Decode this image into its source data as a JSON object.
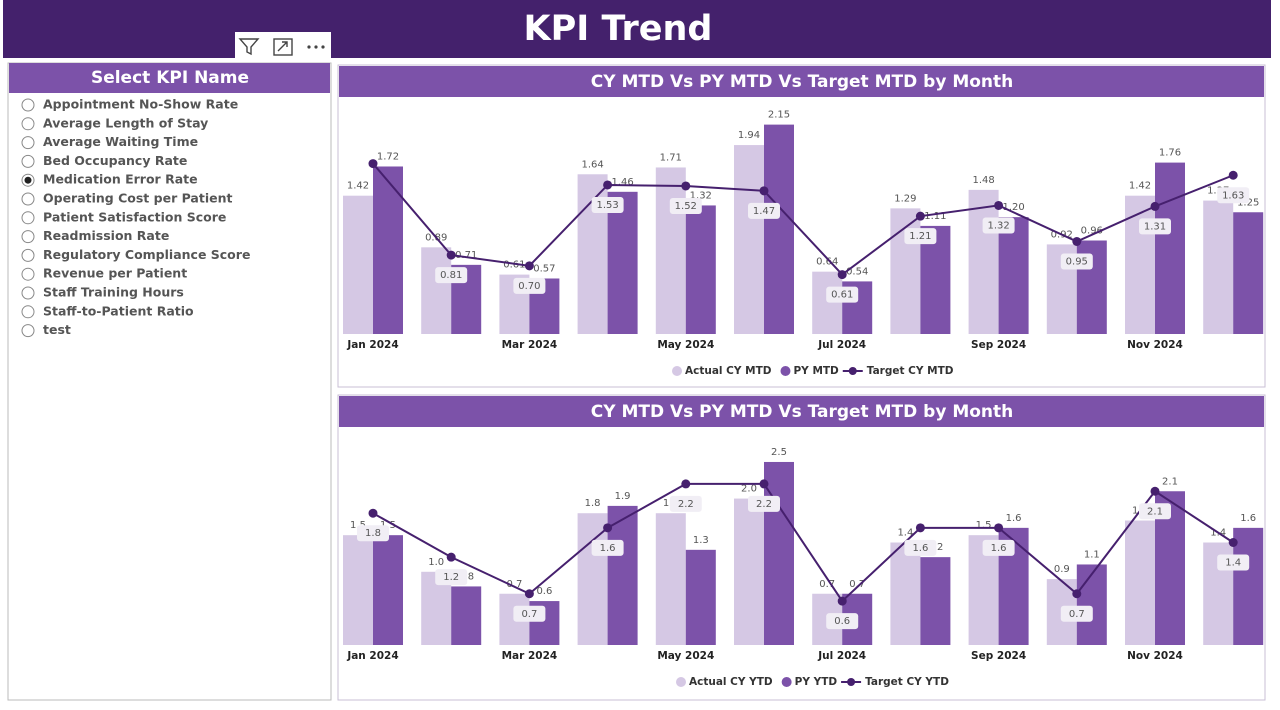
{
  "header": {
    "title": "KPI Trend"
  },
  "slicer": {
    "title": "Select KPI Name",
    "selected": 4,
    "items": [
      "Appointment No-Show Rate",
      "Average Length of Stay",
      "Average Waiting Time",
      "Bed Occupancy Rate",
      "Medication Error Rate",
      "Operating Cost per Patient",
      "Patient Satisfaction Score",
      "Readmission Rate",
      "Regulatory Compliance Score",
      "Revenue per Patient",
      "Staff Training Hours",
      "Staff-to-Patient Ratio",
      "test"
    ]
  },
  "chart_data": [
    {
      "type": "combo",
      "title": "CY MTD Vs PY MTD Vs Target MTD by Month",
      "legend": "bottom",
      "categories": [
        "Jan 2024",
        null,
        "Mar 2024",
        null,
        "May 2024",
        null,
        "Jul 2024",
        null,
        "Sep 2024",
        null,
        "Nov 2024",
        null
      ],
      "ylim": [
        0,
        2.3
      ],
      "series": [
        {
          "name": "Actual CY MTD",
          "type": "bar",
          "color": "#d5c8e4",
          "values": [
            1.42,
            0.89,
            0.61,
            1.64,
            1.71,
            1.94,
            0.64,
            1.29,
            1.48,
            0.92,
            1.42,
            1.37
          ],
          "value_labels": [
            "1.42",
            "0.89",
            "0.61",
            "1.64",
            "1.71",
            "1.94",
            "0.64",
            "1.29",
            "1.48",
            "0.92",
            "1.42",
            "1.37"
          ]
        },
        {
          "name": "PY MTD",
          "type": "bar",
          "color": "#7c52a9",
          "values": [
            1.72,
            0.71,
            0.57,
            1.46,
            1.32,
            2.15,
            0.54,
            1.11,
            1.2,
            0.96,
            1.76,
            1.25
          ],
          "value_labels": [
            "1.72",
            "0.71",
            "0.57",
            "1.46",
            "1.32",
            "2.15",
            "0.54",
            "1.11",
            "1.20",
            "0.96",
            "1.76",
            "1.25"
          ]
        },
        {
          "name": "Target CY MTD",
          "type": "line",
          "color": "#46206e",
          "values": [
            1.75,
            0.81,
            0.7,
            1.53,
            1.52,
            1.47,
            0.61,
            1.21,
            1.32,
            0.95,
            1.31,
            1.63
          ],
          "value_labels": [
            null,
            "0.81",
            "0.70",
            "1.53",
            "1.52",
            "1.47",
            "0.61",
            "1.21",
            "1.32",
            "0.95",
            "1.31",
            "1.63"
          ]
        }
      ]
    },
    {
      "type": "combo",
      "title": "CY MTD Vs PY MTD Vs Target MTD by Month",
      "legend": "bottom",
      "categories": [
        "Jan 2024",
        null,
        "Mar 2024",
        null,
        "May 2024",
        null,
        "Jul 2024",
        null,
        "Sep 2024",
        null,
        "Nov 2024",
        null
      ],
      "ylim": [
        0,
        2.8
      ],
      "series": [
        {
          "name": "Actual CY YTD",
          "type": "bar",
          "color": "#d5c8e4",
          "values": [
            1.5,
            1.0,
            0.7,
            1.8,
            1.8,
            2.0,
            0.7,
            1.4,
            1.5,
            0.9,
            1.7,
            1.4
          ],
          "value_labels": [
            "1.5",
            "1.0",
            "0.7",
            "1.8",
            "1.8",
            "2.0",
            "0.7",
            "1.4",
            "1.5",
            "0.9",
            "1.7",
            "1.4"
          ]
        },
        {
          "name": "PY YTD",
          "type": "bar",
          "color": "#7c52a9",
          "values": [
            1.5,
            0.8,
            0.6,
            1.9,
            1.3,
            2.5,
            0.7,
            1.2,
            1.6,
            1.1,
            2.1,
            1.6
          ],
          "value_labels": [
            "1.5",
            "0.8",
            "0.6",
            "1.9",
            "1.3",
            "2.5",
            "0.7",
            "1.2",
            "1.6",
            "1.1",
            "2.1",
            "1.6"
          ]
        },
        {
          "name": "Target CY YTD",
          "type": "line",
          "color": "#46206e",
          "values": [
            1.8,
            1.2,
            0.7,
            1.6,
            2.2,
            2.2,
            0.6,
            1.6,
            1.6,
            0.7,
            2.1,
            1.4
          ],
          "value_labels": [
            "1.8",
            "1.2",
            "0.7",
            "1.6",
            "2.2",
            "2.2",
            "0.6",
            "1.6",
            "1.6",
            "0.7",
            "2.1",
            "1.4"
          ]
        }
      ]
    }
  ]
}
